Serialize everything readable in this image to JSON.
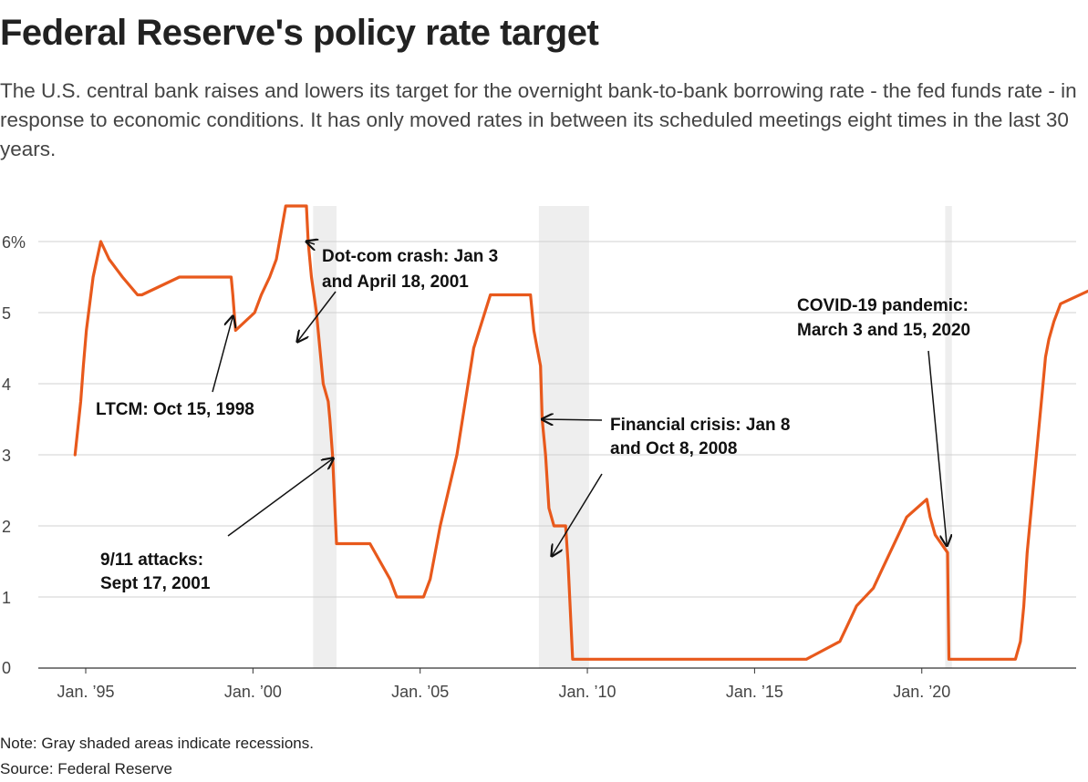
{
  "header": {
    "title": "Federal Reserve's policy rate target",
    "subtitle": "The U.S. central bank raises and lowers its target for the overnight bank-to-bank borrowing rate - the fed funds rate - in response to economic conditions. It has only moved rates in between its scheduled meetings eight times in the last 30 years."
  },
  "footer": {
    "note": "Note: Gray shaded areas indicate recessions.",
    "source": "Source: Federal Reserve"
  },
  "colors": {
    "line": "#e8591c",
    "recession": "#eeeeee",
    "grid": "#d0d0d0",
    "axis": "#333333"
  },
  "chart_data": {
    "type": "line",
    "title": "Federal Reserve's policy rate target",
    "xlabel": "",
    "ylabel": "",
    "xlim": [
      1994.0,
      2024.8
    ],
    "ylim": [
      0,
      6.5
    ],
    "y_ticks": [
      {
        "value": 0,
        "label": "0"
      },
      {
        "value": 1,
        "label": "1"
      },
      {
        "value": 2,
        "label": "2"
      },
      {
        "value": 3,
        "label": "3"
      },
      {
        "value": 4,
        "label": "4"
      },
      {
        "value": 5,
        "label": "5"
      },
      {
        "value": 6,
        "label": "6%"
      }
    ],
    "x_ticks": [
      {
        "value": 1995,
        "label": "Jan. ’95"
      },
      {
        "value": 2000,
        "label": "Jan. ’00"
      },
      {
        "value": 2005,
        "label": "Jan. ’05"
      },
      {
        "value": 2010,
        "label": "Jan. ’10"
      },
      {
        "value": 2015,
        "label": "Jan. ’15"
      },
      {
        "value": 2020,
        "label": "Jan. ’20"
      }
    ],
    "grid": true,
    "recessions": [
      {
        "start": 2001.2,
        "end": 2001.9
      },
      {
        "start": 2007.95,
        "end": 2009.45
      },
      {
        "start": 2020.1,
        "end": 2020.3
      }
    ],
    "series": [
      {
        "x": [
          1994.08,
          1994.25,
          1994.33,
          1994.42,
          1994.62,
          1994.85,
          1995.1,
          1995.5,
          1995.95,
          1996.08,
          1997.2,
          1998.75,
          1998.8,
          1998.88,
          1999.45,
          1999.65,
          1999.9,
          2000.1,
          2000.38,
          2001.0,
          2001.05,
          2001.15,
          2001.3,
          2001.4,
          2001.5,
          2001.65,
          2001.7,
          2001.78,
          2001.9,
          2002.9,
          2003.5,
          2003.7,
          2004.5,
          2004.7,
          2005.0,
          2005.5,
          2006.0,
          2006.5,
          2007.7,
          2007.8,
          2007.9,
          2008.0,
          2008.05,
          2008.15,
          2008.25,
          2008.4,
          2008.75,
          2008.82,
          2008.96,
          2015.95,
          2016.95,
          2017.2,
          2017.45,
          2017.95,
          2018.2,
          2018.45,
          2018.7,
          2018.95,
          2019.55,
          2019.65,
          2019.8,
          2020.17,
          2020.21,
          2022.2,
          2022.35,
          2022.45,
          2022.55,
          2022.7,
          2022.85,
          2023.0,
          2023.1,
          2023.2,
          2023.35,
          2023.55,
          2024.7
        ],
        "y": [
          3.0,
          3.75,
          4.25,
          4.75,
          5.5,
          6.0,
          5.75,
          5.5,
          5.25,
          5.25,
          5.5,
          5.5,
          5.25,
          4.75,
          5.0,
          5.25,
          5.5,
          5.75,
          6.5,
          6.5,
          6.0,
          5.5,
          5.0,
          4.5,
          4.0,
          3.75,
          3.5,
          3.0,
          1.75,
          1.75,
          1.25,
          1.0,
          1.0,
          1.25,
          2.0,
          3.0,
          4.5,
          5.25,
          5.25,
          4.75,
          4.5,
          4.25,
          3.5,
          3.0,
          2.25,
          2.0,
          2.0,
          1.5,
          0.125,
          0.125,
          0.375,
          0.625,
          0.875,
          1.125,
          1.375,
          1.625,
          1.875,
          2.125,
          2.375,
          2.125,
          1.875,
          1.625,
          0.125,
          0.125,
          0.375,
          0.875,
          1.625,
          2.375,
          3.125,
          3.875,
          4.375,
          4.625,
          4.875,
          5.125,
          5.375
        ]
      }
    ],
    "annotations": [
      {
        "text_lines": [
          "LTCM: Oct 15, 1998"
        ],
        "target": {
          "x": 1998.8,
          "y": 4.95
        }
      },
      {
        "text_lines": [
          "Dot-com crash: Jan 3",
          "and April 18, 2001"
        ],
        "target": {
          "x": 2001.0,
          "y": 6.0
        }
      },
      {
        "text_lines": [
          "9/11 attacks:",
          "Sept 17, 2001"
        ],
        "target": {
          "x": 2001.8,
          "y": 2.95
        }
      },
      {
        "text_lines": [
          "Financial crisis: Jan 8",
          "and Oct 8, 2008"
        ],
        "target": {
          "x": 2008.05,
          "y": 3.5
        }
      },
      {
        "text_lines": [
          "COVID-19 pandemic:",
          "March 3 and 15, 2020"
        ],
        "target": {
          "x": 2020.15,
          "y": 1.72
        }
      }
    ]
  }
}
